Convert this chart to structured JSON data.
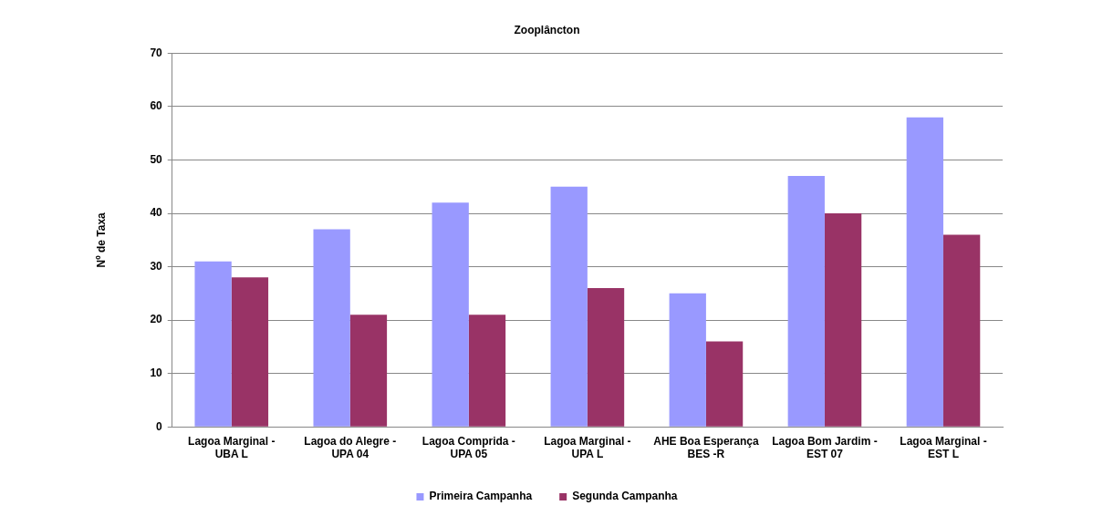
{
  "chart_data": {
    "type": "bar",
    "title": "Zooplâncton",
    "ylabel": "Nº de Taxa",
    "categories": [
      "Lagoa Marginal - UBA L",
      "Lagoa do Alegre - UPA 04",
      "Lagoa Comprida - UPA 05",
      "Lagoa Marginal - UPA L",
      "AHE Boa Esperança BES -R",
      "Lagoa Bom Jardim - EST 07",
      "Lagoa Marginal - EST L"
    ],
    "series": [
      {
        "name": "Primeira Campanha",
        "color": "#9999ff",
        "values": [
          31,
          37,
          42,
          45,
          25,
          47,
          58
        ]
      },
      {
        "name": "Segunda Campanha",
        "color": "#993366",
        "values": [
          28,
          21,
          21,
          26,
          16,
          40,
          36
        ]
      }
    ],
    "ylim": [
      0,
      70
    ],
    "yticks": [
      0,
      10,
      20,
      30,
      40,
      50,
      60,
      70
    ],
    "grid": "y",
    "legend": "bottom"
  }
}
